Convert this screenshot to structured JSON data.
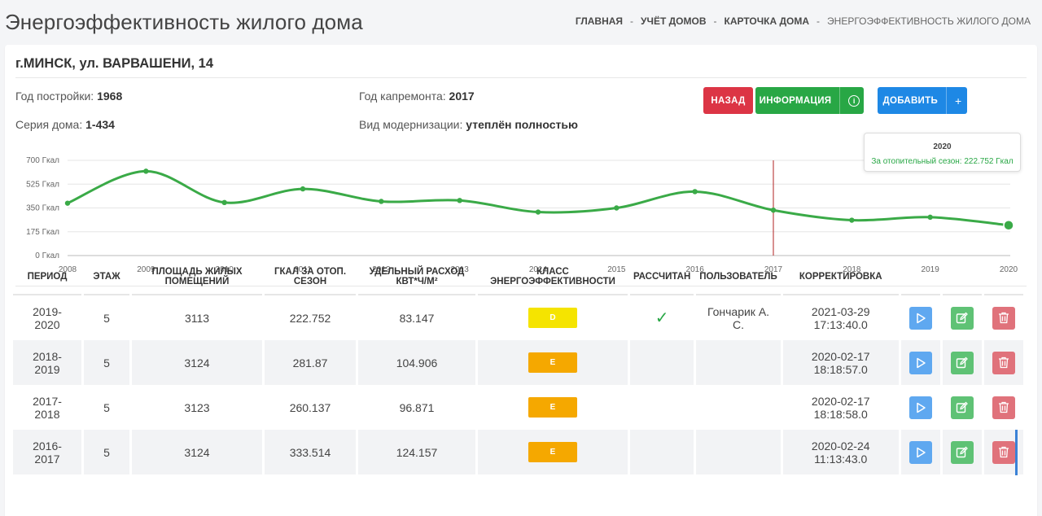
{
  "page_title": "Энергоэффективность жилого дома",
  "breadcrumb": [
    {
      "label": "ГЛАВНАЯ"
    },
    {
      "label": "УЧЁТ ДОМОВ"
    },
    {
      "label": "КАРТОЧКА ДОМА"
    },
    {
      "label": "ЭНЕРГОЭФФЕКТИВНОСТЬ ЖИЛОГО ДОМА"
    }
  ],
  "breadcrumb_sep": "-",
  "address": "г.МИНСК, ул. ВАРВАШЕНИ, 14",
  "info": {
    "build_year_label": "Год постройки:",
    "build_year": "1968",
    "repair_year_label": "Год капремонта:",
    "repair_year": "2017",
    "series_label": "Серия дома:",
    "series": "1-434",
    "modernization_label": "Вид модернизации:",
    "modernization": "утеплён полностью"
  },
  "buttons": {
    "back": "НАЗАД",
    "info": "ИНФОРМАЦИЯ",
    "add": "ДОБАВИТЬ"
  },
  "chart_data": {
    "type": "line",
    "x": [
      2008,
      2009,
      2010,
      2011,
      2012,
      2013,
      2014,
      2015,
      2016,
      2017,
      2018,
      2019,
      2020
    ],
    "series": [
      {
        "values": [
          385,
          620,
          390,
          490,
          398,
          405,
          320,
          350,
          470,
          333.514,
          260.137,
          281.87,
          222.752
        ]
      }
    ],
    "y_ticks": [
      "0 Гкал",
      "175 Гкал",
      "350 Гкал",
      "525 Гкал",
      "700 Гкал"
    ],
    "ylim": [
      0,
      700
    ],
    "marker_x": 2017,
    "color": "#3aaa47",
    "marker_color": "#b22222",
    "tooltip": {
      "title": "2020",
      "text": "За отопительный сезон: 222.752 Гкал"
    }
  },
  "table": {
    "headers": [
      "ПЕРИОД",
      "ЭТАЖ",
      "ПЛОЩАДЬ ЖИЛЫХ ПОМЕЩЕНИЙ",
      "ГКАЛ ЗА ОТОП. СЕЗОН",
      "УДЕЛЬНЫЙ РАСХОД КВТ*Ч/М²",
      "КЛАСС ЭНЕРГОЭФФЕКТИВНОСТИ",
      "РАССЧИТАН",
      "ПОЛЬЗОВАТЕЛЬ",
      "КОРРЕКТИРОВКА"
    ],
    "rows": [
      {
        "period": "2019-2020",
        "floor": "5",
        "area": "3113",
        "gcal": "222.752",
        "specific": "83.147",
        "class": "D",
        "class_color": "#f5e400",
        "calculated": true,
        "user": "Гончарик А. С.",
        "date": "2021-03-29",
        "time": "17:13:40.0"
      },
      {
        "period": "2018-2019",
        "floor": "5",
        "area": "3124",
        "gcal": "281.87",
        "specific": "104.906",
        "class": "E",
        "class_color": "#f5a800",
        "calculated": false,
        "user": "",
        "date": "2020-02-17",
        "time": "18:18:57.0"
      },
      {
        "period": "2017-2018",
        "floor": "5",
        "area": "3123",
        "gcal": "260.137",
        "specific": "96.871",
        "class": "E",
        "class_color": "#f5a800",
        "calculated": false,
        "user": "",
        "date": "2020-02-17",
        "time": "18:18:58.0"
      },
      {
        "period": "2016-2017",
        "floor": "5",
        "area": "3124",
        "gcal": "333.514",
        "specific": "124.157",
        "class": "E",
        "class_color": "#f5a800",
        "calculated": false,
        "user": "",
        "date": "2020-02-24",
        "time": "11:13:43.0"
      }
    ]
  }
}
